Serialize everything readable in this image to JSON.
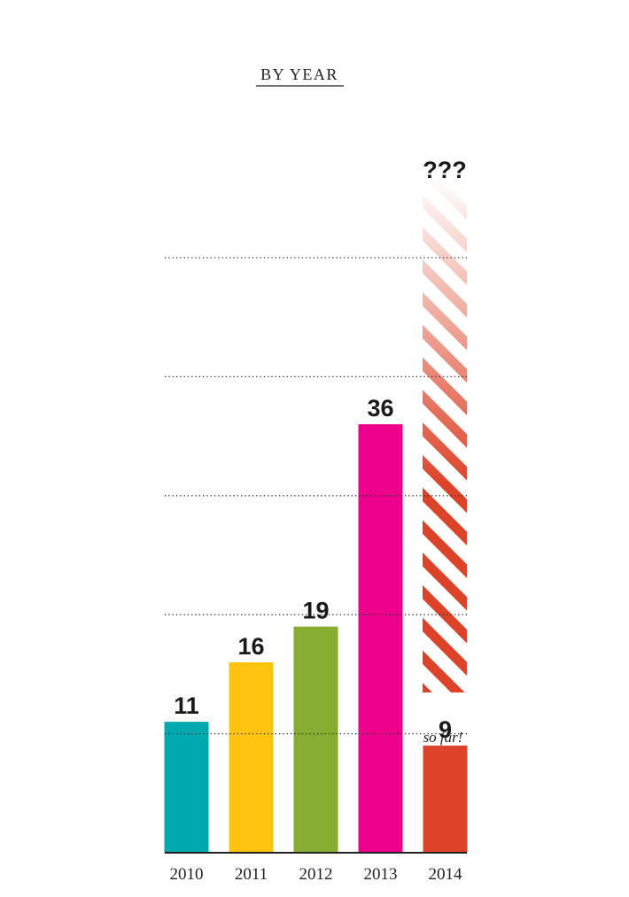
{
  "chart_data": {
    "type": "bar",
    "title": "BY YEAR",
    "categories": [
      "2010",
      "2011",
      "2012",
      "2013",
      "2014"
    ],
    "values": [
      11,
      16,
      19,
      36,
      9
    ],
    "colors": [
      "#00a9b0",
      "#fec30f",
      "#86ad2f",
      "#ec008c",
      "#dc4328"
    ],
    "ylim": [
      0,
      50
    ],
    "yticks": [
      10,
      20,
      30,
      40,
      50
    ],
    "grid": true,
    "annotations": {
      "unknown": "???",
      "so_far": "so far!"
    }
  }
}
